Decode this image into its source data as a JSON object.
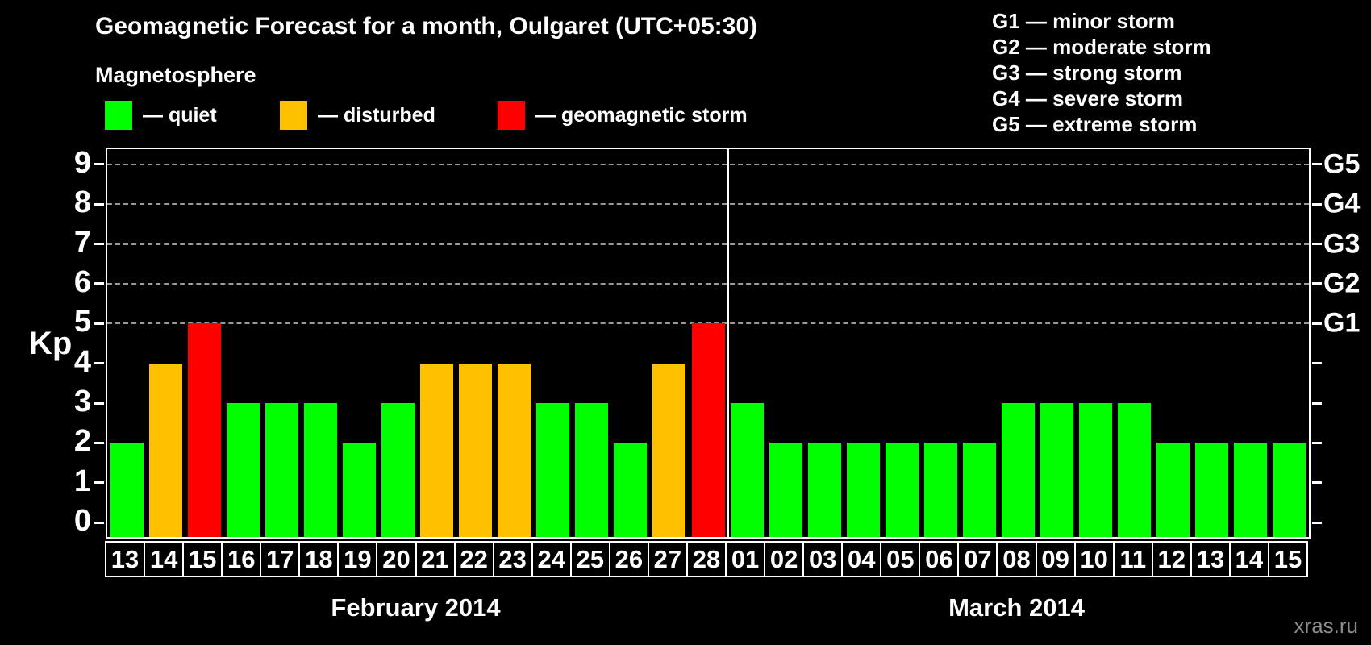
{
  "title": "Geomagnetic Forecast for a month, Oulgaret (UTC+05:30)",
  "subtitle": "Magnetosphere",
  "watermark": "xras.ru",
  "colors": {
    "quiet": "#00ff00",
    "disturbed": "#ffc000",
    "storm": "#ff0000",
    "grid": "#9a9a9a",
    "axis": "#ffffff",
    "watermark": "#8c8c8c",
    "background": "#000000"
  },
  "legend": {
    "items": [
      {
        "label": "— quiet",
        "status": "quiet",
        "color": "#00ff00"
      },
      {
        "label": "— disturbed",
        "status": "disturbed",
        "color": "#ffc000"
      },
      {
        "label": "— geomagnetic storm",
        "status": "storm",
        "color": "#ff0000"
      }
    ]
  },
  "g_legend": [
    "G1 — minor storm",
    "G2 — moderate storm",
    "G3 — strong storm",
    "G4 — severe storm",
    "G5 — extreme storm"
  ],
  "chart_data": {
    "type": "bar",
    "title": "Geomagnetic Forecast for a month, Oulgaret (UTC+05:30)",
    "subtitle": "Magnetosphere",
    "ylabel": "Kp",
    "ylim": [
      0,
      9
    ],
    "yticks": [
      0,
      1,
      2,
      3,
      4,
      5,
      6,
      7,
      8,
      9
    ],
    "gridlines": [
      5,
      6,
      7,
      8,
      9
    ],
    "grid": "dashed, only at storm levels 5-9",
    "legend_position": "top",
    "right_axis_labels": [
      {
        "value": 5,
        "label": "G1"
      },
      {
        "value": 6,
        "label": "G2"
      },
      {
        "value": 7,
        "label": "G3"
      },
      {
        "value": 8,
        "label": "G4"
      },
      {
        "value": 9,
        "label": "G5"
      }
    ],
    "months": [
      {
        "label": "February 2014",
        "days": 16
      },
      {
        "label": "March 2014",
        "days": 15
      }
    ],
    "days": [
      {
        "month": "February 2014",
        "day": "13",
        "value": 2,
        "status": "quiet"
      },
      {
        "month": "February 2014",
        "day": "14",
        "value": 4,
        "status": "disturbed"
      },
      {
        "month": "February 2014",
        "day": "15",
        "value": 5,
        "status": "storm"
      },
      {
        "month": "February 2014",
        "day": "16",
        "value": 3,
        "status": "quiet"
      },
      {
        "month": "February 2014",
        "day": "17",
        "value": 3,
        "status": "quiet"
      },
      {
        "month": "February 2014",
        "day": "18",
        "value": 3,
        "status": "quiet"
      },
      {
        "month": "February 2014",
        "day": "19",
        "value": 2,
        "status": "quiet"
      },
      {
        "month": "February 2014",
        "day": "20",
        "value": 3,
        "status": "quiet"
      },
      {
        "month": "February 2014",
        "day": "21",
        "value": 4,
        "status": "disturbed"
      },
      {
        "month": "February 2014",
        "day": "22",
        "value": 4,
        "status": "disturbed"
      },
      {
        "month": "February 2014",
        "day": "23",
        "value": 4,
        "status": "disturbed"
      },
      {
        "month": "February 2014",
        "day": "24",
        "value": 3,
        "status": "quiet"
      },
      {
        "month": "February 2014",
        "day": "25",
        "value": 3,
        "status": "quiet"
      },
      {
        "month": "February 2014",
        "day": "26",
        "value": 2,
        "status": "quiet"
      },
      {
        "month": "February 2014",
        "day": "27",
        "value": 4,
        "status": "disturbed"
      },
      {
        "month": "February 2014",
        "day": "28",
        "value": 5,
        "status": "storm"
      },
      {
        "month": "March 2014",
        "day": "01",
        "value": 3,
        "status": "quiet"
      },
      {
        "month": "March 2014",
        "day": "02",
        "value": 2,
        "status": "quiet"
      },
      {
        "month": "March 2014",
        "day": "03",
        "value": 2,
        "status": "quiet"
      },
      {
        "month": "March 2014",
        "day": "04",
        "value": 2,
        "status": "quiet"
      },
      {
        "month": "March 2014",
        "day": "05",
        "value": 2,
        "status": "quiet"
      },
      {
        "month": "March 2014",
        "day": "06",
        "value": 2,
        "status": "quiet"
      },
      {
        "month": "March 2014",
        "day": "07",
        "value": 2,
        "status": "quiet"
      },
      {
        "month": "March 2014",
        "day": "08",
        "value": 3,
        "status": "quiet"
      },
      {
        "month": "March 2014",
        "day": "09",
        "value": 3,
        "status": "quiet"
      },
      {
        "month": "March 2014",
        "day": "10",
        "value": 3,
        "status": "quiet"
      },
      {
        "month": "March 2014",
        "day": "11",
        "value": 3,
        "status": "quiet"
      },
      {
        "month": "March 2014",
        "day": "12",
        "value": 2,
        "status": "quiet"
      },
      {
        "month": "March 2014",
        "day": "13",
        "value": 2,
        "status": "quiet"
      },
      {
        "month": "March 2014",
        "day": "14",
        "value": 2,
        "status": "quiet"
      },
      {
        "month": "March 2014",
        "day": "15",
        "value": 2,
        "status": "quiet"
      }
    ]
  }
}
